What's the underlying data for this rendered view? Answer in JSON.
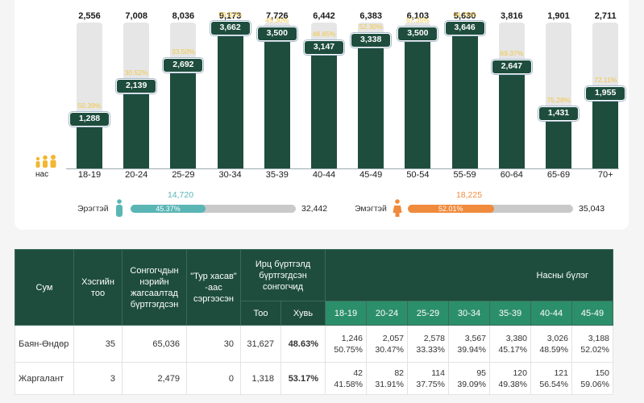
{
  "chart_data": {
    "type": "bar",
    "title": "",
    "xlabel": "нас",
    "categories": [
      "18-19",
      "20-24",
      "25-29",
      "30-34",
      "35-39",
      "40-44",
      "45-49",
      "50-54",
      "55-59",
      "60-64",
      "65-69",
      "70+"
    ],
    "series": [
      {
        "name": "total",
        "values": [
          2556,
          7008,
          8036,
          9173,
          7726,
          6442,
          6383,
          6103,
          5630,
          3816,
          1901,
          2711
        ]
      },
      {
        "name": "registered",
        "values": [
          1288,
          2139,
          2692,
          3662,
          3500,
          3147,
          3338,
          3500,
          3646,
          2647,
          1431,
          1955
        ]
      },
      {
        "name": "percent",
        "values": [
          50.39,
          30.52,
          33.5,
          39.92,
          45.3,
          48.85,
          52.3,
          57.35,
          64.76,
          69.37,
          75.28,
          72.11
        ]
      }
    ],
    "total_labels": [
      "2,556",
      "7,008",
      "8,036",
      "9,173",
      "7,726",
      "6,442",
      "6,383",
      "6,103",
      "5,630",
      "3,816",
      "1,901",
      "2,711"
    ],
    "registered_labels": [
      "1,288",
      "2,139",
      "2,692",
      "3,662",
      "3,500",
      "3,147",
      "3,338",
      "3,500",
      "3,646",
      "2,647",
      "1,431",
      "1,955"
    ],
    "percent_labels": [
      "50.39%",
      "30.52%",
      "33.50%",
      "39.92%",
      "45.30%",
      "48.85%",
      "52.30%",
      "57.35%",
      "64.76%",
      "69.37%",
      "75.28%",
      "72.11%"
    ]
  },
  "gender": {
    "male": {
      "label": "Эрэгтэй",
      "count": "14,720",
      "pct_label": "45.37%",
      "pct": 45.37,
      "total": "32,442",
      "color": "#5ab5b5"
    },
    "female": {
      "label": "Эмэгтэй",
      "count": "18,225",
      "pct_label": "52.01%",
      "pct": 52.01,
      "total": "35,043",
      "color": "#f08a3c"
    }
  },
  "colors": {
    "dark_green": "#1e4d3e",
    "age_header": "#2c8f6b",
    "pct_yellow": "#f2c744"
  },
  "table": {
    "headers": {
      "sum": "Сум",
      "sections": "Хэсгийн тоо",
      "voters": "Сонгогчдын нэрийн жагсаалтад бүртгэгдсэн",
      "removed": "\"Тур хасав\" -аас сэргээсэн",
      "iris": "Ирц бүртгэлд бүртгэгдсэн сонгогчид",
      "age_group": "Насны бүлэг",
      "count": "Тоо",
      "share": "Хувь"
    },
    "age_headers": [
      "18-19",
      "20-24",
      "25-29",
      "30-34",
      "35-39",
      "40-44",
      "45-49"
    ],
    "rows": [
      {
        "sum": "Баян-Өндөр",
        "sections": "35",
        "voters": "65,036",
        "removed": "30",
        "count": "31,627",
        "share": "48.63%",
        "ages": [
          [
            "1,246",
            "50.75%"
          ],
          [
            "2,057",
            "30.47%"
          ],
          [
            "2,578",
            "33.33%"
          ],
          [
            "3,567",
            "39.94%"
          ],
          [
            "3,380",
            "45.17%"
          ],
          [
            "3,026",
            "48.59%"
          ],
          [
            "3,188",
            "52.02%"
          ]
        ]
      },
      {
        "sum": "Жаргалант",
        "sections": "3",
        "voters": "2,479",
        "removed": "0",
        "count": "1,318",
        "share": "53.17%",
        "ages": [
          [
            "42",
            "41.58%"
          ],
          [
            "82",
            "31.91%"
          ],
          [
            "114",
            "37.75%"
          ],
          [
            "95",
            "39.09%"
          ],
          [
            "120",
            "49.38%"
          ],
          [
            "121",
            "56.54%"
          ],
          [
            "150",
            "59.06%"
          ]
        ]
      }
    ]
  }
}
